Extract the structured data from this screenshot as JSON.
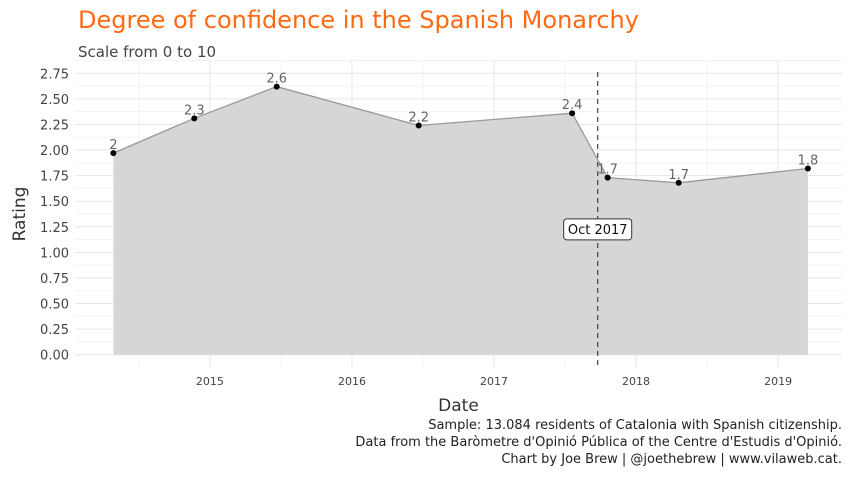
{
  "chart_data": {
    "type": "area",
    "title": "Degree of confidence in the Spanish Monarchy",
    "subtitle": "Scale from 0 to 10",
    "xlabel": "Date",
    "ylabel": "Rating",
    "x": [
      2014.32,
      2014.89,
      2015.47,
      2016.47,
      2017.55,
      2017.8,
      2018.3,
      2019.21
    ],
    "values": [
      1.97,
      2.31,
      2.62,
      2.24,
      2.36,
      1.73,
      1.68,
      1.82
    ],
    "labels": [
      "2",
      "2.3",
      "2.6",
      "2.2",
      "2.4",
      "1.7",
      "1.7",
      "1.8"
    ],
    "xlim": [
      2014.05,
      2019.45
    ],
    "ylim": [
      -0.13,
      2.88
    ],
    "xticks": [
      2015,
      2016,
      2017,
      2018,
      2019
    ],
    "xtick_labels": [
      "2015",
      "2016",
      "2017",
      "2018",
      "2019"
    ],
    "yticks": [
      0,
      0.25,
      0.5,
      0.75,
      1,
      1.25,
      1.5,
      1.75,
      2,
      2.25,
      2.5,
      2.75
    ],
    "ytick_labels": [
      "0.00",
      "0.25",
      "0.50",
      "0.75",
      "1.00",
      "1.25",
      "1.50",
      "1.75",
      "2.00",
      "2.25",
      "2.50",
      "2.75"
    ],
    "annotation": {
      "x": 2017.73,
      "y": 1.23,
      "text": "Oct 2017"
    },
    "grid": true,
    "fill_color": "#d4d4d4",
    "line_color": "#999999",
    "title_color": "#ff6a13"
  },
  "caption": {
    "line1": "Sample: 13.084 residents of Catalonia with Spanish citizenship.",
    "line2": "Data from the Baròmetre d'Opinió Pública of the Centre d'Estudis d'Opinió.",
    "line3": "Chart by Joe Brew | @joethebrew | www.vilaweb.cat."
  }
}
